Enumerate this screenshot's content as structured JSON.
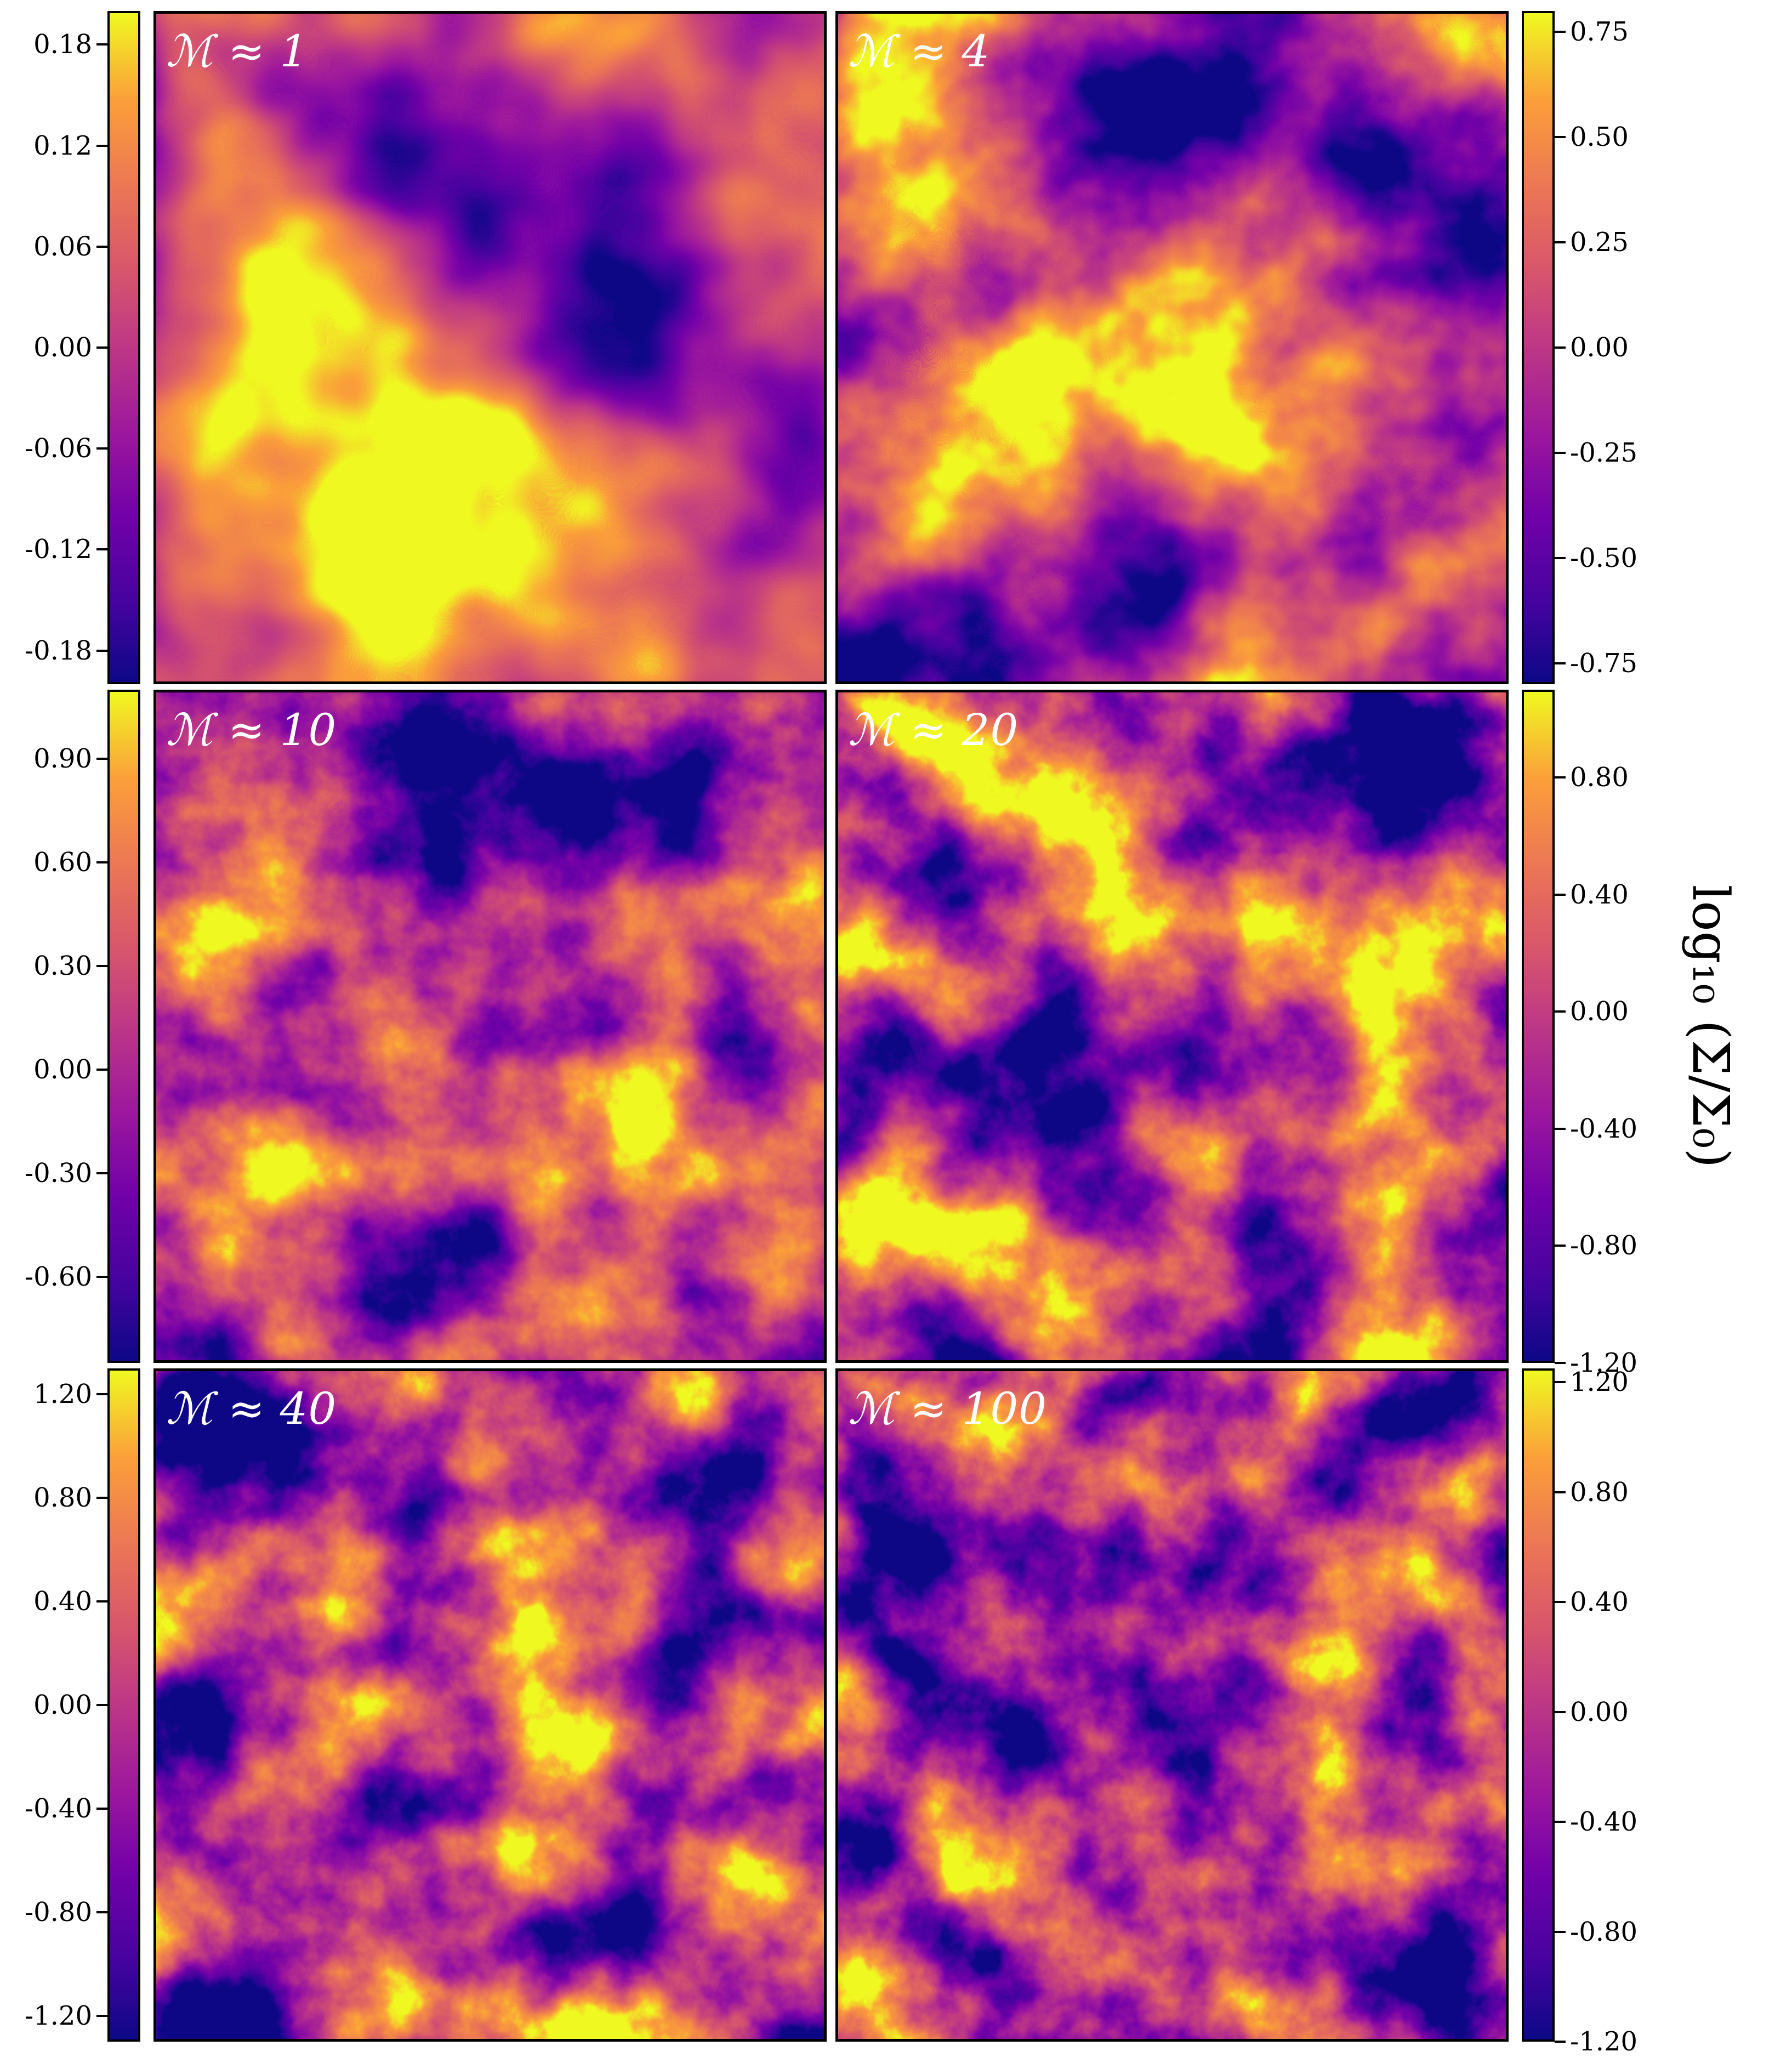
{
  "panels": [
    {
      "label": "ℳ ≈ 1",
      "bias": 0.05,
      "freq": 0.0016,
      "octaves": 4,
      "seed": 3
    },
    {
      "label": "ℳ ≈ 4",
      "bias": 0.0,
      "freq": 0.0022,
      "octaves": 5,
      "seed": 11
    },
    {
      "label": "ℳ ≈ 10",
      "bias": -0.05,
      "freq": 0.003,
      "octaves": 6,
      "seed": 23
    },
    {
      "label": "ℳ ≈ 20",
      "bias": -0.02,
      "freq": 0.0034,
      "octaves": 6,
      "seed": 37
    },
    {
      "label": "ℳ ≈ 40",
      "bias": -0.02,
      "freq": 0.0036,
      "octaves": 6,
      "seed": 51
    },
    {
      "label": "ℳ ≈ 100",
      "bias": -0.03,
      "freq": 0.004,
      "octaves": 6,
      "seed": 67
    }
  ],
  "colorbars": [
    {
      "side": "left",
      "row": 0,
      "min": -0.2,
      "max": 0.2,
      "ticks": [
        "0.18",
        "0.12",
        "0.06",
        "0.00",
        "-0.06",
        "-0.12",
        "-0.18"
      ],
      "values": [
        0.18,
        0.12,
        0.06,
        0.0,
        -0.06,
        -0.12,
        -0.18
      ]
    },
    {
      "side": "right",
      "row": 0,
      "min": -0.8,
      "max": 0.8,
      "ticks": [
        "0.75",
        "0.50",
        "0.25",
        "0.00",
        "-0.25",
        "-0.50",
        "-0.75"
      ],
      "values": [
        0.75,
        0.5,
        0.25,
        0.0,
        -0.25,
        -0.5,
        -0.75
      ]
    },
    {
      "side": "left",
      "row": 1,
      "min": -0.85,
      "max": 1.1,
      "ticks": [
        "0.90",
        "0.60",
        "0.30",
        "0.00",
        "-0.30",
        "-0.60"
      ],
      "values": [
        0.9,
        0.6,
        0.3,
        0.0,
        -0.3,
        -0.6
      ]
    },
    {
      "side": "right",
      "row": 1,
      "min": -1.2,
      "max": 1.1,
      "ticks": [
        "0.80",
        "0.40",
        "0.00",
        "-0.40",
        "-0.80",
        "-1.20"
      ],
      "values": [
        0.8,
        0.4,
        0.0,
        -0.4,
        -0.8,
        -1.2
      ]
    },
    {
      "side": "left",
      "row": 2,
      "min": -1.3,
      "max": 1.3,
      "ticks": [
        "1.20",
        "0.80",
        "0.40",
        "0.00",
        "-0.40",
        "-0.80",
        "-1.20"
      ],
      "values": [
        1.2,
        0.8,
        0.4,
        0.0,
        -0.4,
        -0.8,
        -1.2
      ]
    },
    {
      "side": "right",
      "row": 2,
      "min": -1.2,
      "max": 1.25,
      "ticks": [
        "1.20",
        "0.80",
        "0.40",
        "0.00",
        "-0.40",
        "-0.80",
        "-1.20"
      ],
      "values": [
        1.2,
        0.8,
        0.4,
        0.0,
        -0.4,
        -0.8,
        -1.2
      ]
    }
  ],
  "ylabel": "log₁₀ (Σ/Σ₀)",
  "colormap": "plasma",
  "colors": {
    "low": "#0d0887",
    "mid": "#bd3786",
    "high": "#f0f921"
  }
}
